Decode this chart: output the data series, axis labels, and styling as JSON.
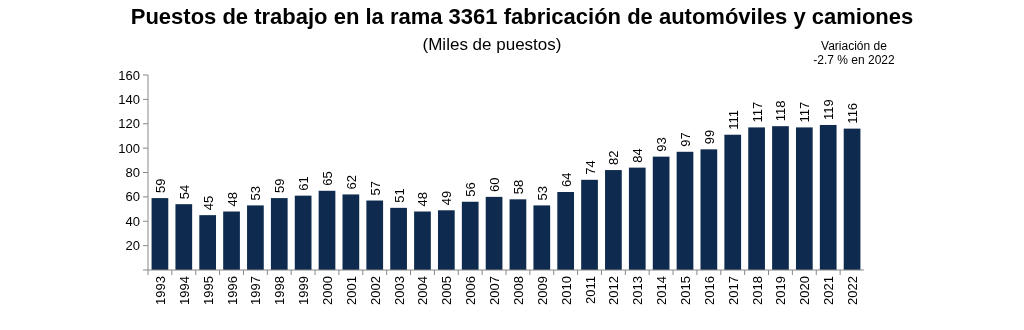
{
  "chart_data": {
    "type": "bar",
    "title": "Puestos de trabajo en la rama 3361 fabricación de automóviles y camiones",
    "subtitle": "(Miles de puestos)",
    "annotations": [
      "Variación de\n-2.7 % en 2022"
    ],
    "categories": [
      "1993",
      "1994",
      "1995",
      "1996",
      "1997",
      "1998",
      "1999",
      "2000",
      "2001",
      "2002",
      "2003",
      "2004",
      "2005",
      "2006",
      "2007",
      "2008",
      "2009",
      "2010",
      "2011",
      "2012",
      "2013",
      "2014",
      "2015",
      "2016",
      "2017",
      "2018",
      "2019",
      "2020",
      "2021",
      "2022"
    ],
    "values": [
      59,
      54,
      45,
      48,
      53,
      59,
      61,
      65,
      62,
      57,
      51,
      48,
      49,
      56,
      60,
      58,
      53,
      64,
      74,
      82,
      84,
      93,
      97,
      99,
      111,
      117,
      118,
      117,
      119,
      116
    ],
    "color": "#0e2a4e",
    "data_labels": true,
    "ylim": [
      0,
      160
    ],
    "yticks": [
      {
        "value": 0,
        "label": null
      },
      20,
      40,
      60,
      80,
      100,
      120,
      140,
      160
    ],
    "grid": false
  }
}
